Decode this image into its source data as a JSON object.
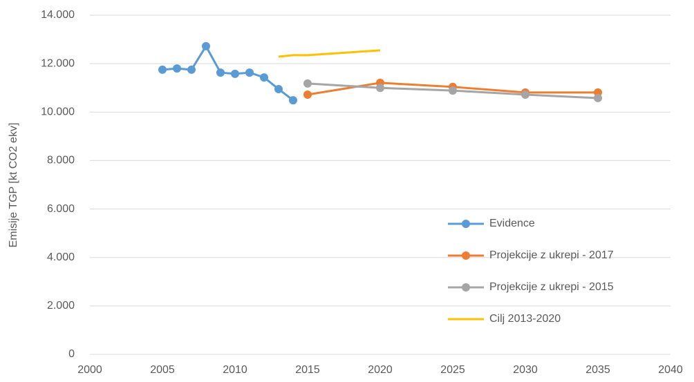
{
  "chart_data": {
    "type": "line",
    "y_label": "Emisije TGP [kt CO2 ekv]",
    "xlim": [
      2000,
      2040
    ],
    "xticks": [
      2000,
      2005,
      2010,
      2015,
      2020,
      2025,
      2030,
      2035,
      2040
    ],
    "ylim": [
      0,
      14000
    ],
    "yticks": [
      0,
      {
        "value": 2000,
        "label": "2.000"
      },
      {
        "value": 4000,
        "label": "4.000"
      },
      {
        "value": 6000,
        "label": "6.000"
      },
      {
        "value": 8000,
        "label": "8.000"
      },
      {
        "value": 10000,
        "label": "10.000"
      },
      {
        "value": 12000,
        "label": "12.000"
      },
      {
        "value": 14000,
        "label": "14.000"
      }
    ],
    "grid": true,
    "legend": "lower right",
    "series": [
      {
        "name": "Evidence",
        "color": "#5b9bd5",
        "markers": true,
        "x": [
          2005,
          2006,
          2007,
          2008,
          2009,
          2010,
          2011,
          2012,
          2013,
          2014
        ],
        "values": [
          11750,
          11800,
          11750,
          12720,
          11630,
          11580,
          11630,
          11430,
          10950,
          10490
        ]
      },
      {
        "name": "Projekcije z ukrepi - 2017",
        "color": "#ed7d31",
        "markers": true,
        "x": [
          2015,
          2020,
          2025,
          2030,
          2035
        ],
        "values": [
          10720,
          11210,
          11040,
          10810,
          10810
        ]
      },
      {
        "name": "Projekcije z ukrepi - 2015",
        "color": "#a5a5a5",
        "markers": true,
        "x": [
          2015,
          2020,
          2025,
          2030,
          2035
        ],
        "values": [
          11180,
          11000,
          10890,
          10720,
          10580
        ]
      },
      {
        "name": "Cilj 2013-2020",
        "color": "#ffc000",
        "markers": false,
        "x": [
          2013,
          2014,
          2015,
          2020
        ],
        "values": [
          12290,
          12350,
          12350,
          12550
        ]
      }
    ]
  }
}
